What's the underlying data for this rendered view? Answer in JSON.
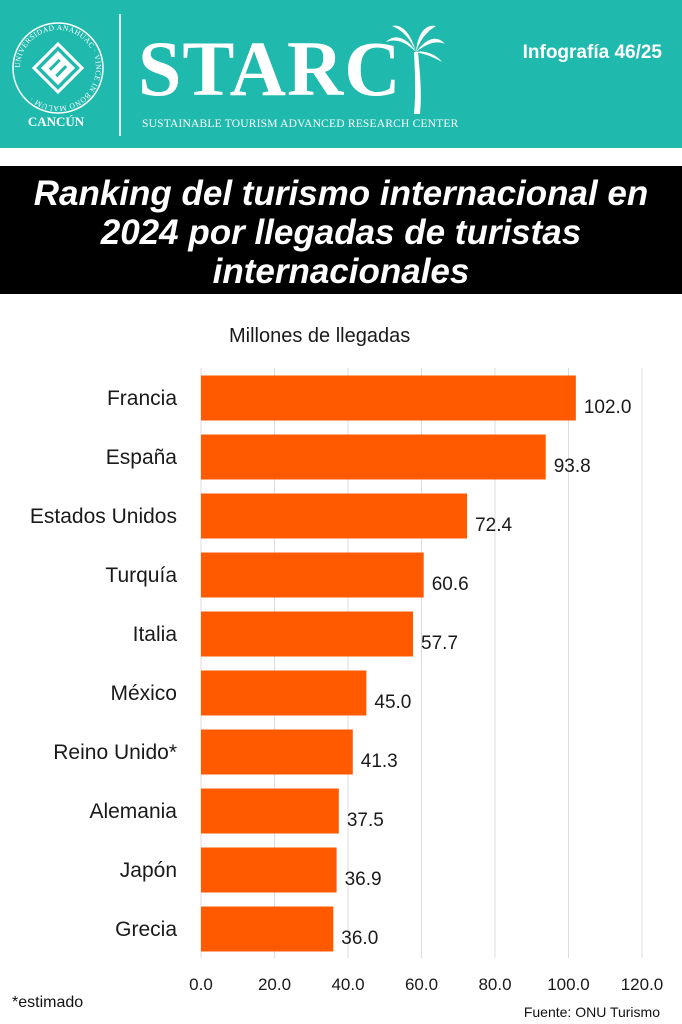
{
  "header": {
    "seal_text": "UNIVERSIDAD ANÁHUAC · VINCE IN BONO MALUM ·",
    "seal_caption": "CANCÚN",
    "brand": "STARC",
    "brand_subtitle": "SUSTAINABLE TOURISM ADVANCED RESEARCH CENTER",
    "issue": "Infografía 46/25",
    "colors": {
      "background": "#20b9ad",
      "text": "#ffffff"
    }
  },
  "banner": {
    "title": "Ranking del turismo internacional en 2024 por llegadas de turistas internacionales",
    "colors": {
      "background": "#000000",
      "text": "#ffffff"
    }
  },
  "chart_data": {
    "type": "bar",
    "orientation": "horizontal",
    "subtitle": "Millones de llegadas",
    "categories": [
      "Francia",
      "España",
      "Estados Unidos",
      "Turquía",
      "Italia",
      "México",
      "Reino Unido*",
      "Alemania",
      "Japón",
      "Grecia"
    ],
    "values": [
      102.0,
      93.8,
      72.4,
      60.6,
      57.7,
      45.0,
      41.3,
      37.5,
      36.9,
      36.0
    ],
    "value_labels": [
      "102.0",
      "93.8",
      "72.4",
      "60.6",
      "57.7",
      "45.0",
      "41.3",
      "37.5",
      "36.9",
      "36.0"
    ],
    "xlim": [
      0,
      120
    ],
    "xticks": [
      "0.0",
      "20.0",
      "40.0",
      "60.0",
      "80.0",
      "100.0",
      "120.0"
    ],
    "grid": "vertical",
    "legend": "none",
    "bar_color": "#ff5a00"
  },
  "footer": {
    "footnote": "*estimado",
    "source": "Fuente: ONU Turismo"
  }
}
